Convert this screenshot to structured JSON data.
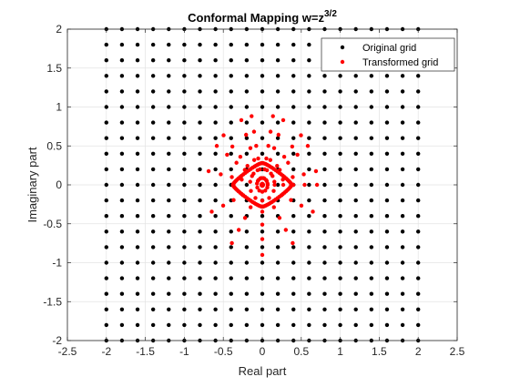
{
  "chart_data": {
    "type": "scatter",
    "title": "Conformal Mapping w=z",
    "title_superscript": "3/2",
    "xlabel": "Real part",
    "ylabel": "Imaginary part",
    "xlim": [
      -2.5,
      2.5
    ],
    "ylim": [
      -2,
      2
    ],
    "xticks": [
      "-2.5",
      "-2",
      "-1.5",
      "-1",
      "-0.5",
      "0",
      "0.5",
      "1",
      "1.5",
      "2",
      "2.5"
    ],
    "yticks": [
      "-2",
      "-1.5",
      "-1",
      "-0.5",
      "0",
      "0.5",
      "1",
      "1.5",
      "2"
    ],
    "grid": true,
    "legend_position": "top-right",
    "series": [
      {
        "name": "Original grid",
        "color": "#000000",
        "marker": "dot",
        "grid_x_range": [
          -2,
          2
        ],
        "grid_y_range": [
          -2,
          2
        ],
        "grid_points_per_axis": 21
      },
      {
        "name": "Transformed grid",
        "color": "#ff0000",
        "marker": "dot",
        "mapping": "w = z^(3/2)",
        "polar_radius_range": [
          0.05,
          0.9
        ],
        "outer_radius_extent": 0.9
      }
    ]
  }
}
